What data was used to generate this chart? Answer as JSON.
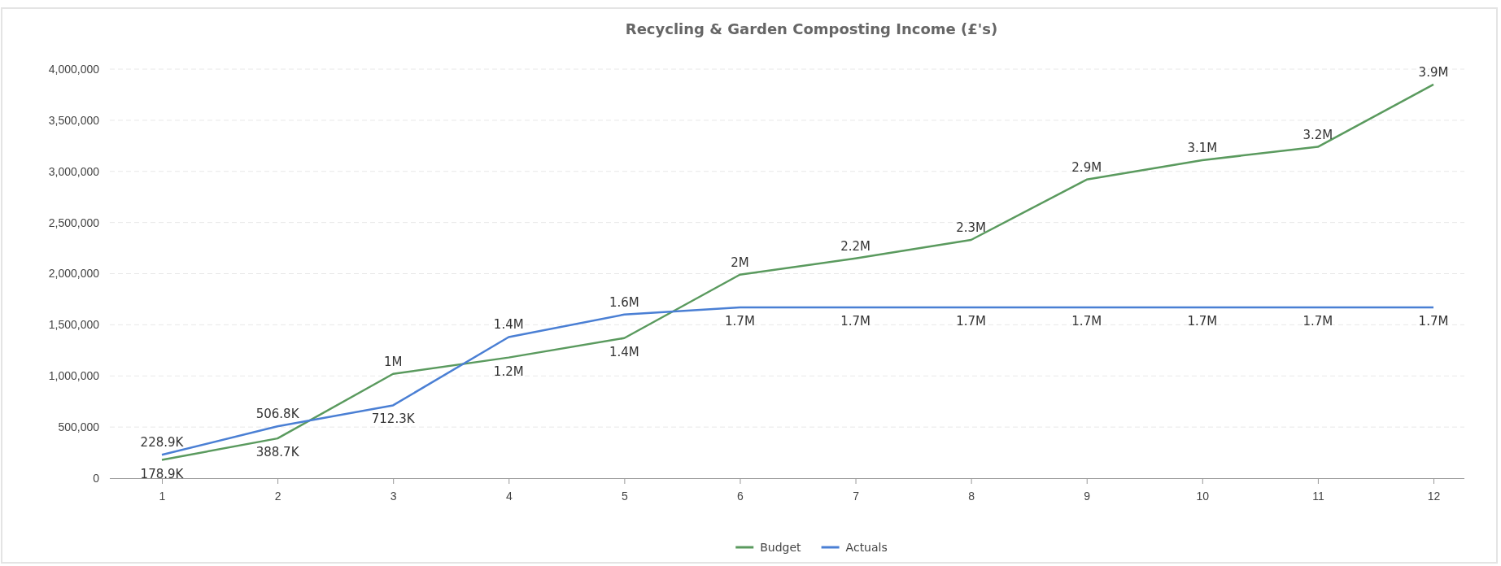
{
  "chart_data": {
    "type": "line",
    "title": "Recycling & Garden Composting Income (£'s)",
    "categories": [
      "1",
      "2",
      "3",
      "4",
      "5",
      "6",
      "7",
      "8",
      "9",
      "10",
      "11",
      "12"
    ],
    "series": [
      {
        "name": "Budget",
        "color": "#5a9a5e",
        "values": [
          178900,
          388700,
          1020000,
          1180000,
          1370000,
          1990000,
          2150000,
          2330000,
          2920000,
          3110000,
          3240000,
          3850000
        ],
        "value_labels": [
          "178.9K",
          "388.7K",
          "1M",
          "1.2M",
          "1.4M",
          "2M",
          "2.2M",
          "2.3M",
          "2.9M",
          "3.1M",
          "3.2M",
          "3.9M"
        ]
      },
      {
        "name": "Actuals",
        "color": "#4a7fd4",
        "values": [
          228900,
          506800,
          712300,
          1380000,
          1600000,
          1670000,
          1670000,
          1670000,
          1670000,
          1670000,
          1670000,
          1670000
        ],
        "value_labels": [
          "228.9K",
          "506.8K",
          "712.3K",
          "1.4M",
          "1.6M",
          "1.7M",
          "1.7M",
          "1.7M",
          "1.7M",
          "1.7M",
          "1.7M",
          "1.7M"
        ]
      }
    ],
    "ylim": [
      0,
      4000000
    ],
    "yticks": [
      {
        "value": 0,
        "label": "0"
      },
      {
        "value": 500000,
        "label": "500,000"
      },
      {
        "value": 1000000,
        "label": "1,000,000"
      },
      {
        "value": 1500000,
        "label": "1,500,000"
      },
      {
        "value": 2000000,
        "label": "2,000,000"
      },
      {
        "value": 2500000,
        "label": "2,500,000"
      },
      {
        "value": 3000000,
        "label": "3,000,000"
      },
      {
        "value": 3500000,
        "label": "3,500,000"
      },
      {
        "value": 4000000,
        "label": "4,000,000"
      }
    ],
    "grid": "y",
    "legend": "bottom",
    "marker": "none",
    "line_style": "solid"
  }
}
